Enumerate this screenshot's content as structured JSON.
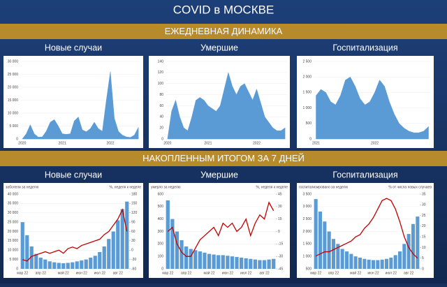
{
  "header": {
    "title": "COVID в МОСКВЕ",
    "section_1": "ЕЖЕДНЕВНАЯ ДИНАМИКА",
    "section_2": "НАКОПЛЕННЫМ ИТОГОМ ЗА 7 ДНЕЙ"
  },
  "chart_data": [
    {
      "type": "area",
      "title": "Новые случаи",
      "color": "#5b9bd5",
      "categories": [
        "2020",
        null,
        null,
        null,
        null,
        null,
        null,
        null,
        null,
        null,
        "2021",
        null,
        null,
        null,
        null,
        null,
        null,
        null,
        null,
        null,
        null,
        null,
        "2022",
        null,
        null,
        null,
        null,
        null,
        null,
        null
      ],
      "values": [
        0,
        2000,
        5500,
        2000,
        700,
        800,
        3000,
        6500,
        7500,
        5000,
        2000,
        1800,
        2000,
        7000,
        8500,
        3500,
        2800,
        4000,
        6500,
        4000,
        3000,
        15000,
        26000,
        8000,
        3000,
        1500,
        800,
        600,
        1500,
        4500
      ],
      "ylim": [
        0,
        30000
      ],
      "yticks": [
        0,
        {
          "value": 5000,
          "label": "5 000"
        },
        {
          "value": 10000,
          "label": "10 000"
        },
        {
          "value": 15000,
          "label": "15 000"
        },
        {
          "value": 20000,
          "label": "20 000"
        },
        {
          "value": 25000,
          "label": "25 000"
        },
        {
          "value": 30000,
          "label": "30 000"
        }
      ]
    },
    {
      "type": "area",
      "title": "Умершие",
      "color": "#5b9bd5",
      "categories": [
        "2020",
        null,
        null,
        null,
        null,
        null,
        null,
        null,
        null,
        null,
        "2021",
        null,
        null,
        null,
        null,
        null,
        null,
        null,
        null,
        null,
        null,
        null,
        "2022",
        null,
        null,
        null,
        null,
        null,
        null,
        null
      ],
      "values": [
        0,
        50,
        70,
        40,
        20,
        15,
        40,
        70,
        75,
        70,
        60,
        55,
        50,
        60,
        90,
        120,
        95,
        80,
        95,
        100,
        85,
        70,
        90,
        65,
        40,
        30,
        20,
        15,
        15,
        20
      ],
      "ylim": [
        0,
        140
      ],
      "yticks": [
        0,
        20,
        40,
        60,
        80,
        100,
        120,
        140
      ]
    },
    {
      "type": "area",
      "title": "Госпитализация",
      "color": "#5b9bd5",
      "categories": [
        "2021",
        null,
        null,
        null,
        null,
        null,
        null,
        null,
        null,
        null,
        null,
        null,
        "2022",
        null,
        null,
        null,
        null,
        null,
        null,
        null,
        null,
        null,
        null,
        null
      ],
      "values": [
        1400,
        1600,
        1500,
        1200,
        1100,
        1400,
        1900,
        2000,
        1700,
        1300,
        1100,
        1200,
        1500,
        1900,
        1700,
        1200,
        800,
        500,
        350,
        250,
        200,
        200,
        250,
        400
      ],
      "ylim": [
        0,
        2500
      ],
      "yticks": [
        0,
        500,
        {
          "value": 1000,
          "label": "1 000"
        },
        {
          "value": 1500,
          "label": "1 500"
        },
        {
          "value": 2000,
          "label": "2 000"
        },
        {
          "value": 2500,
          "label": "2 500"
        }
      ]
    },
    {
      "type": "bar-line",
      "title": "Новые случаи",
      "ylabel": "заболели за неделю",
      "y2label": "%, неделя к неделе",
      "categories": [
        "мар 22",
        null,
        null,
        null,
        "апр 22",
        null,
        null,
        null,
        null,
        "май 22",
        null,
        null,
        null,
        "июн 22",
        null,
        null,
        null,
        "июл 22",
        null,
        null,
        null,
        "авг 22",
        null,
        null
      ],
      "series": [
        {
          "color": "#5b9bd5",
          "values": [
            25000,
            18000,
            12000,
            8000,
            6000,
            5000,
            4000,
            3500,
            3200,
            3000,
            3200,
            3500,
            4000,
            4500,
            5000,
            6000,
            7000,
            9000,
            12000,
            16000,
            20000,
            26000,
            32000,
            36000
          ]
        },
        {
          "color": "#c00000",
          "axis": "y2",
          "values": [
            -30,
            -35,
            -20,
            -15,
            -10,
            -5,
            -10,
            -5,
            0,
            -10,
            5,
            10,
            5,
            15,
            20,
            25,
            30,
            35,
            50,
            60,
            80,
            100,
            130,
            60
          ]
        }
      ],
      "ylim": [
        0,
        40000
      ],
      "yticks": [
        0,
        {
          "value": 5000,
          "label": "5 000"
        },
        {
          "value": 10000,
          "label": "10 000"
        },
        {
          "value": 15000,
          "label": "15 000"
        },
        {
          "value": 20000,
          "label": "20 000"
        },
        {
          "value": 25000,
          "label": "25 000"
        },
        {
          "value": 30000,
          "label": "30 000"
        },
        {
          "value": 35000,
          "label": "35 000"
        },
        {
          "value": 40000,
          "label": "40 000"
        }
      ],
      "y2lim": [
        -60,
        180
      ],
      "y2ticks": [
        -60,
        -30,
        0,
        30,
        60,
        90,
        120,
        150,
        180
      ]
    },
    {
      "type": "bar-line",
      "title": "Умершие",
      "ylabel": "умерло за неделю",
      "y2label": "%, неделя к неделе",
      "categories": [
        "мар 22",
        null,
        null,
        null,
        "апр 22",
        null,
        null,
        null,
        null,
        "май 22",
        null,
        null,
        null,
        "июн 22",
        null,
        null,
        null,
        "июл 22",
        null,
        null,
        null,
        "авг 22",
        null,
        null
      ],
      "series": [
        {
          "color": "#5b9bd5",
          "values": [
            550,
            400,
            300,
            230,
            180,
            160,
            150,
            140,
            130,
            120,
            115,
            110,
            110,
            105,
            100,
            95,
            90,
            85,
            80,
            75,
            70,
            70,
            75,
            80
          ]
        },
        {
          "color": "#c00000",
          "axis": "y2",
          "values": [
            0,
            5,
            -15,
            -25,
            -30,
            -30,
            -20,
            -10,
            -5,
            0,
            5,
            -5,
            10,
            5,
            10,
            0,
            5,
            15,
            -5,
            10,
            20,
            15,
            35,
            25
          ]
        }
      ],
      "ylim": [
        0,
        600
      ],
      "yticks": [
        0,
        100,
        200,
        300,
        400,
        500,
        600
      ],
      "y2lim": [
        -45,
        45
      ],
      "y2ticks": [
        -45,
        -30,
        -15,
        0,
        15,
        30,
        45
      ]
    },
    {
      "type": "bar-line",
      "title": "Госпитализация",
      "ylabel": "госпитализировано за неделю",
      "y2label": "% от числа новых случаев",
      "categories": [
        "мар 22",
        null,
        null,
        null,
        "апр 22",
        null,
        null,
        null,
        null,
        "май 22",
        null,
        null,
        null,
        "июн 22",
        null,
        null,
        null,
        "июл 22",
        null,
        null,
        null,
        "авг 22",
        null,
        null
      ],
      "series": [
        {
          "color": "#5b9bd5",
          "values": [
            3300,
            2800,
            2400,
            2000,
            1700,
            1500,
            1300,
            1200,
            1100,
            1000,
            950,
            900,
            870,
            850,
            850,
            870,
            900,
            950,
            1050,
            1200,
            1500,
            1900,
            2300,
            2600
          ]
        },
        {
          "color": "#c00000",
          "axis": "y2",
          "values": [
            6,
            7,
            8,
            8,
            9,
            10,
            11,
            12,
            13,
            15,
            16,
            19,
            21,
            24,
            28,
            32,
            33,
            32,
            28,
            22,
            15,
            10,
            7,
            5
          ]
        }
      ],
      "ylim": [
        500,
        3500
      ],
      "yticks": [
        500,
        {
          "value": 1000,
          "label": "1 000"
        },
        {
          "value": 1500,
          "label": "1 500"
        },
        {
          "value": 2000,
          "label": "2 000"
        },
        {
          "value": 2500,
          "label": "2 500"
        },
        {
          "value": 3000,
          "label": "3 000"
        },
        {
          "value": 3500,
          "label": "3 500"
        }
      ],
      "y2lim": [
        0,
        35
      ],
      "y2ticks": [
        0,
        5,
        10,
        15,
        20,
        25,
        30,
        35
      ]
    }
  ]
}
